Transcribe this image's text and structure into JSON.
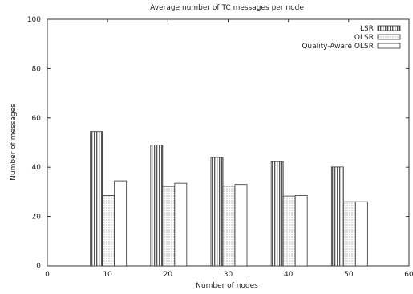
{
  "chart_data": {
    "type": "bar",
    "title": "Average number of TC messages per node",
    "xlabel": "Number of nodes",
    "ylabel": "Number of messages",
    "xlim": [
      0,
      60
    ],
    "ylim": [
      0,
      100
    ],
    "xticks": [
      0,
      10,
      20,
      30,
      40,
      50,
      60
    ],
    "yticks": [
      0,
      20,
      40,
      60,
      80,
      100
    ],
    "x_tick_labels": [
      "0",
      "10",
      "20",
      "30",
      "40",
      "50",
      "60"
    ],
    "y_tick_labels": [
      "0",
      "20",
      "40",
      "60",
      "80",
      "100"
    ],
    "categories": [
      10,
      20,
      30,
      40,
      50
    ],
    "legend_position": "top-right",
    "grid": false,
    "series": [
      {
        "name": "LSR",
        "pattern": "vertical-lines",
        "values": [
          54.5,
          49,
          44,
          42.3,
          40.1
        ]
      },
      {
        "name": "OLSR",
        "pattern": "dots",
        "values": [
          28.5,
          32.2,
          32.3,
          28.3,
          26
        ]
      },
      {
        "name": "Quality-Aware OLSR",
        "pattern": "blank",
        "values": [
          34.5,
          33.5,
          33,
          28.5,
          26
        ]
      }
    ]
  }
}
